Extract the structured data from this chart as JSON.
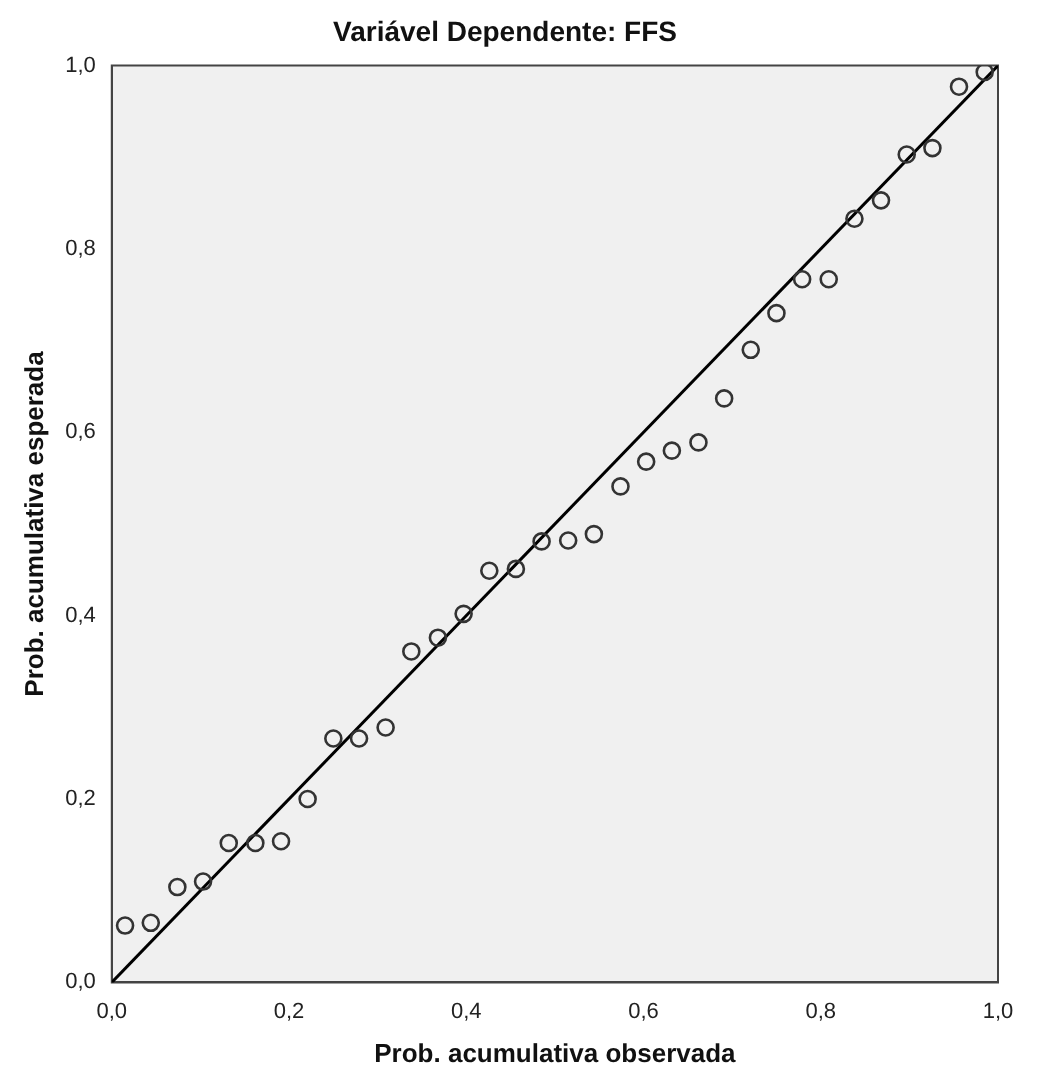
{
  "chart_data": {
    "type": "scatter",
    "title": "Variável Dependente: FFS",
    "xlabel": "Prob. acumulativa observada",
    "ylabel": "Prob. acumulativa esperada",
    "xlim": [
      0,
      1
    ],
    "ylim": [
      0,
      1
    ],
    "xticks": [
      {
        "value": 0,
        "label": "0,0"
      },
      {
        "value": 0.2,
        "label": "0,2"
      },
      {
        "value": 0.4,
        "label": "0,4"
      },
      {
        "value": 0.6,
        "label": "0,6"
      },
      {
        "value": 0.8,
        "label": "0,8"
      },
      {
        "value": 1,
        "label": "1,0"
      }
    ],
    "yticks": [
      {
        "value": 0,
        "label": "0,0"
      },
      {
        "value": 0.2,
        "label": "0,2"
      },
      {
        "value": 0.4,
        "label": "0,4"
      },
      {
        "value": 0.6,
        "label": "0,6"
      },
      {
        "value": 0.8,
        "label": "0,8"
      },
      {
        "value": 1,
        "label": "1,0"
      }
    ],
    "grid": false,
    "legend": false,
    "series": [
      {
        "marker": "circle",
        "color": "#333333",
        "x": [
          0.015,
          0.044,
          0.074,
          0.103,
          0.132,
          0.162,
          0.191,
          0.221,
          0.25,
          0.279,
          0.309,
          0.338,
          0.368,
          0.397,
          0.426,
          0.456,
          0.485,
          0.515,
          0.544,
          0.574,
          0.603,
          0.632,
          0.662,
          0.691,
          0.721,
          0.75,
          0.779,
          0.809,
          0.838,
          0.868,
          0.897,
          0.926,
          0.956,
          0.985
        ],
        "values": [
          0.062,
          0.065,
          0.104,
          0.11,
          0.152,
          0.152,
          0.154,
          0.2,
          0.266,
          0.266,
          0.278,
          0.361,
          0.376,
          0.402,
          0.449,
          0.451,
          0.481,
          0.482,
          0.489,
          0.541,
          0.568,
          0.58,
          0.589,
          0.637,
          0.69,
          0.73,
          0.767,
          0.767,
          0.833,
          0.853,
          0.903,
          0.91,
          0.977,
          0.993
        ]
      },
      {
        "type": "line",
        "marker": "none",
        "color": "#000000",
        "line_style": "solid",
        "x": [
          0,
          1
        ],
        "values": [
          0,
          1
        ]
      }
    ]
  }
}
